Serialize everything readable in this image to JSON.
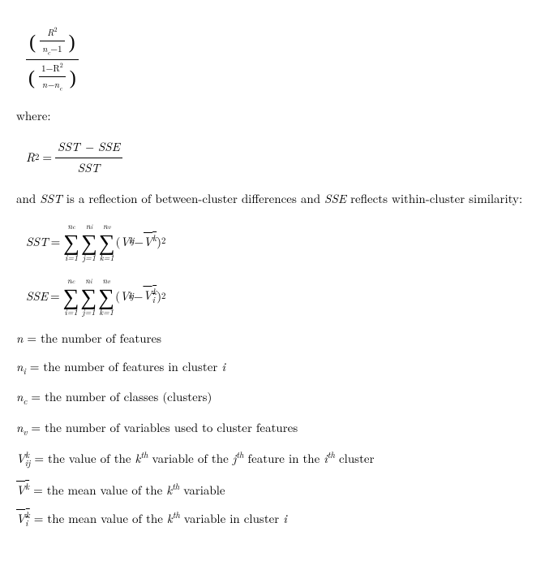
{
  "eq_main": {
    "numerator": {
      "open": "(",
      "inner_num": "R",
      "inner_num_sup": "2",
      "inner_den": "n",
      "inner_den_sub": "c",
      "inner_den_tail": "−1",
      "close": ")"
    },
    "denominator": {
      "open": "(",
      "inner_num_pre": "1−R",
      "inner_num_sup": "2",
      "inner_den": "n−n",
      "inner_den_sub": "c",
      "close": ")"
    }
  },
  "txt_where": "where:",
  "eq_r2": {
    "lhs_base": "R",
    "lhs_sup": "2",
    "eq": " = ",
    "rhs_num": "SST − SSE",
    "rhs_den": "SST"
  },
  "txt_andSST_1": "and ",
  "txt_andSST_2": "SST",
  "txt_andSST_3": " is a reflection of between-cluster differences and ",
  "txt_andSST_4": "SSE",
  "txt_andSST_5": " reflects within-cluster similarity:",
  "sum_upper": {
    "a": "n",
    "a_sub": "c",
    "b": "n",
    "b_sub": "i",
    "c": "n",
    "c_sub": "v"
  },
  "sum_lower": {
    "a": "i=1",
    "b": "j=1",
    "c": "k=1"
  },
  "sigma": "∑",
  "eq_sst": {
    "lhs": "SST",
    "eq": " =",
    "term_open": "(",
    "V": "V",
    "V_sub": "ij",
    "V_sup": "k",
    "minus": " − ",
    "Vbar": "V",
    "Vbar_sup": "k",
    "term_close": ")",
    "pow2": "2"
  },
  "eq_sse": {
    "lhs": "SSE",
    "eq": " =",
    "term_open": "(",
    "V": "V",
    "V_sub": "ij",
    "V_sup": "k",
    "minus": " − ",
    "Vibar": "V",
    "Vibar_sub": "i",
    "Vibar_sup": "k",
    "term_close": ")",
    "pow2": "2"
  },
  "defs": {
    "n": {
      "sym": "n",
      "sub": "",
      "text": " = the number of features"
    },
    "ni": {
      "sym": "n",
      "sub": "i",
      "text": " = the number of features in cluster ",
      "tail_it": "i"
    },
    "nc": {
      "sym": "n",
      "sub": "c",
      "text": " = the number of classes (clusters)"
    },
    "nv": {
      "sym": "n",
      "sub": "v",
      "text": " = the number of variables used to cluster features"
    },
    "Vijk": {
      "sym": "V",
      "sub": "ij",
      "sup": "k",
      "t1": " = the value of the ",
      "kth_base": "k",
      "kth_sup": "th",
      "t2": " variable of the ",
      "jth_base": "j",
      "jth_sup": "th",
      "t3": " feature in the ",
      "ith_base": "i",
      "ith_sup": "th",
      "t4": " cluster"
    },
    "Vkbar": {
      "sym": "V",
      "sup": "k",
      "t1": " = the mean value of the ",
      "kth_base": "k",
      "kth_sup": "th",
      "t2": " variable"
    },
    "Vikbar": {
      "sym": "V",
      "sub": "i",
      "sup": "k",
      "t1": " = the mean value of the ",
      "kth_base": "k",
      "kth_sup": "th",
      "t2": " variable in cluster ",
      "tail_it": "i"
    }
  }
}
